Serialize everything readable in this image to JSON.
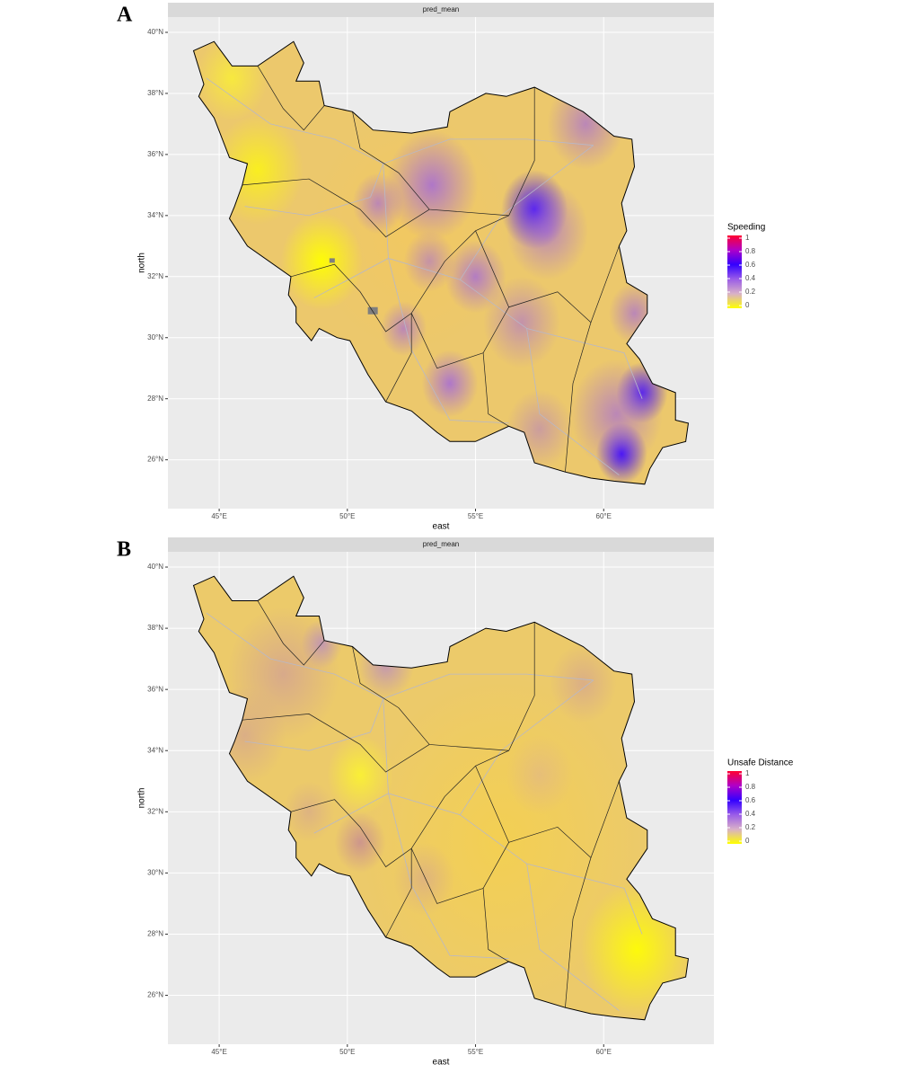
{
  "chart_data": [
    {
      "type": "map",
      "panel_label": "A",
      "strip": "pred_mean",
      "xlabel": "east",
      "ylabel": "north",
      "xlim": [
        43,
        64.3
      ],
      "ylim": [
        24.4,
        40.5
      ],
      "xticks": [
        {
          "value": 45,
          "label": "45°E"
        },
        {
          "value": 50,
          "label": "50°E"
        },
        {
          "value": 55,
          "label": "55°E"
        },
        {
          "value": 60,
          "label": "60°E"
        }
      ],
      "yticks": [
        {
          "value": 26,
          "label": "26°N"
        },
        {
          "value": 28,
          "label": "28°N"
        },
        {
          "value": 30,
          "label": "30°N"
        },
        {
          "value": 32,
          "label": "32°N"
        },
        {
          "value": 34,
          "label": "34°N"
        },
        {
          "value": 36,
          "label": "36°N"
        },
        {
          "value": 38,
          "label": "38°N"
        },
        {
          "value": 40,
          "label": "40°N"
        }
      ],
      "grid": true,
      "legend": {
        "title": "Speeding",
        "ticks": [
          0,
          0.2,
          0.4,
          0.6,
          0.8,
          1
        ],
        "colors": [
          "#ffff00",
          "#d8b0c8",
          "#9a5ce8",
          "#3300ff",
          "#b000c8",
          "#ff0030"
        ]
      }
    },
    {
      "type": "map",
      "panel_label": "B",
      "strip": "pred_mean",
      "xlabel": "east",
      "ylabel": "north",
      "xlim": [
        43,
        64.3
      ],
      "ylim": [
        24.4,
        40.5
      ],
      "xticks": [
        {
          "value": 45,
          "label": "45°E"
        },
        {
          "value": 50,
          "label": "50°E"
        },
        {
          "value": 55,
          "label": "55°E"
        },
        {
          "value": 60,
          "label": "60°E"
        }
      ],
      "yticks": [
        {
          "value": 26,
          "label": "26°N"
        },
        {
          "value": 28,
          "label": "28°N"
        },
        {
          "value": 30,
          "label": "30°N"
        },
        {
          "value": 32,
          "label": "32°N"
        },
        {
          "value": 34,
          "label": "34°N"
        },
        {
          "value": 36,
          "label": "36°N"
        },
        {
          "value": 38,
          "label": "38°N"
        },
        {
          "value": 40,
          "label": "40°N"
        }
      ],
      "grid": true,
      "legend": {
        "title": "Unsafe Distance",
        "ticks": [
          0,
          0.2,
          0.4,
          0.6,
          0.8,
          1
        ],
        "colors": [
          "#ffff00",
          "#d8b0c8",
          "#9a5ce8",
          "#3300ff",
          "#b000c8",
          "#ff0030"
        ]
      }
    }
  ]
}
